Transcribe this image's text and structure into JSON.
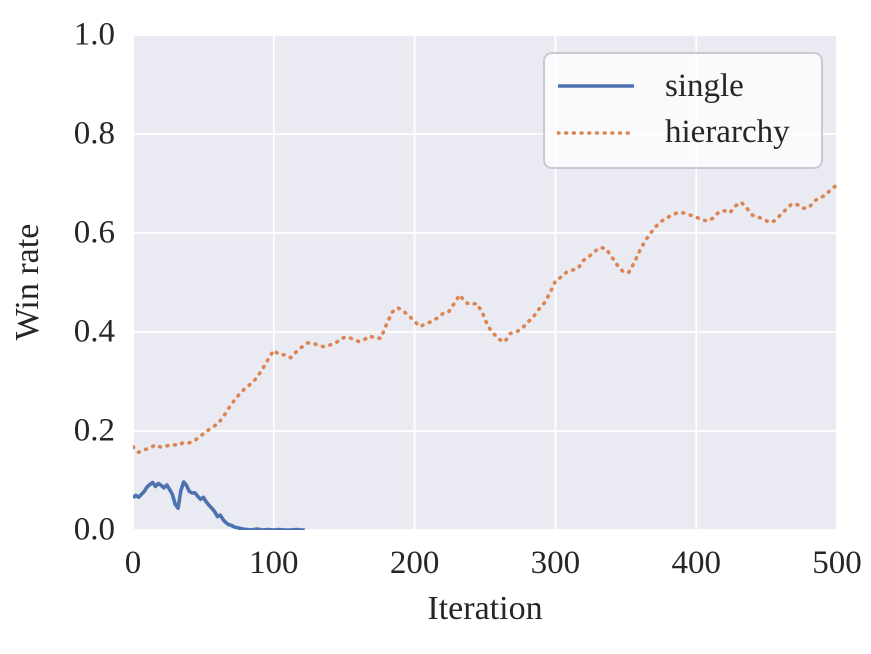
{
  "figure": {
    "background_color": "#ffffff",
    "plot_background_color": "#eaeaf2",
    "grid_color": "#ffffff",
    "text_color": "#262626"
  },
  "chart_data": {
    "type": "line",
    "title": "",
    "xlabel": "Iteration",
    "ylabel": "Win rate",
    "xlim": [
      0,
      500
    ],
    "ylim": [
      0.0,
      1.0
    ],
    "grid": true,
    "x_ticks": [
      0,
      100,
      200,
      300,
      400,
      500
    ],
    "x_tick_labels": [
      "0",
      "100",
      "200",
      "300",
      "400",
      "500"
    ],
    "y_ticks": [
      0.0,
      0.2,
      0.4,
      0.6,
      0.8,
      1.0
    ],
    "y_tick_labels": [
      "0.0",
      "0.2",
      "0.4",
      "0.6",
      "0.8",
      "1.0"
    ],
    "legend": {
      "position": "upper right",
      "entries": [
        {
          "label": "single",
          "color": "#4c72b0",
          "style": "solid"
        },
        {
          "label": "hierarchy",
          "color": "#dd8452",
          "style": "dotted"
        }
      ]
    },
    "series": [
      {
        "name": "single",
        "color": "#4c72b0",
        "style": "solid",
        "x": [
          0,
          2,
          4,
          6,
          8,
          10,
          12,
          14,
          16,
          18,
          20,
          22,
          24,
          26,
          28,
          30,
          32,
          34,
          36,
          38,
          40,
          42,
          44,
          46,
          48,
          50,
          52,
          54,
          56,
          58,
          60,
          62,
          64,
          66,
          68,
          70,
          72,
          75,
          78,
          81,
          84,
          88,
          92,
          96,
          100,
          104,
          108,
          112,
          116,
          120,
          122
        ],
        "y": [
          0.065,
          0.07,
          0.066,
          0.072,
          0.078,
          0.087,
          0.092,
          0.096,
          0.088,
          0.094,
          0.09,
          0.085,
          0.091,
          0.082,
          0.072,
          0.052,
          0.044,
          0.08,
          0.097,
          0.09,
          0.078,
          0.075,
          0.075,
          0.068,
          0.062,
          0.066,
          0.057,
          0.05,
          0.044,
          0.037,
          0.027,
          0.03,
          0.021,
          0.015,
          0.011,
          0.009,
          0.006,
          0.004,
          0.002,
          0.001,
          0.0,
          0.002,
          0.0,
          0.001,
          0.0,
          0.001,
          0.0,
          0.0,
          0.001,
          0.0,
          0.0
        ]
      },
      {
        "name": "hierarchy",
        "color": "#dd8452",
        "style": "dotted",
        "x": [
          0,
          4,
          8,
          12,
          16,
          20,
          24,
          28,
          32,
          36,
          40,
          44,
          48,
          52,
          56,
          60,
          64,
          68,
          72,
          76,
          80,
          84,
          88,
          92,
          96,
          100,
          104,
          108,
          112,
          116,
          120,
          124,
          128,
          132,
          136,
          140,
          144,
          148,
          152,
          156,
          160,
          164,
          168,
          172,
          176,
          180,
          184,
          188,
          192,
          196,
          200,
          204,
          208,
          212,
          216,
          220,
          224,
          228,
          232,
          236,
          240,
          244,
          248,
          252,
          256,
          260,
          264,
          268,
          272,
          276,
          280,
          284,
          288,
          292,
          296,
          300,
          304,
          308,
          312,
          316,
          320,
          324,
          328,
          332,
          336,
          340,
          344,
          348,
          352,
          356,
          360,
          364,
          368,
          372,
          376,
          380,
          384,
          388,
          392,
          396,
          400,
          404,
          408,
          412,
          416,
          420,
          424,
          428,
          432,
          436,
          440,
          444,
          448,
          452,
          456,
          460,
          464,
          468,
          472,
          476,
          480,
          484,
          488,
          492,
          496,
          500
        ],
        "y": [
          0.168,
          0.157,
          0.162,
          0.166,
          0.172,
          0.167,
          0.17,
          0.173,
          0.171,
          0.177,
          0.176,
          0.181,
          0.19,
          0.199,
          0.207,
          0.214,
          0.228,
          0.246,
          0.262,
          0.276,
          0.287,
          0.296,
          0.308,
          0.325,
          0.345,
          0.363,
          0.354,
          0.354,
          0.348,
          0.36,
          0.37,
          0.378,
          0.377,
          0.373,
          0.37,
          0.374,
          0.378,
          0.387,
          0.39,
          0.386,
          0.381,
          0.384,
          0.392,
          0.388,
          0.387,
          0.415,
          0.44,
          0.449,
          0.442,
          0.433,
          0.421,
          0.411,
          0.417,
          0.421,
          0.428,
          0.437,
          0.44,
          0.457,
          0.475,
          0.46,
          0.455,
          0.458,
          0.44,
          0.412,
          0.397,
          0.385,
          0.38,
          0.397,
          0.4,
          0.406,
          0.419,
          0.429,
          0.445,
          0.458,
          0.478,
          0.503,
          0.511,
          0.521,
          0.525,
          0.528,
          0.545,
          0.553,
          0.563,
          0.571,
          0.568,
          0.552,
          0.535,
          0.522,
          0.52,
          0.54,
          0.565,
          0.585,
          0.601,
          0.615,
          0.625,
          0.632,
          0.638,
          0.642,
          0.64,
          0.636,
          0.632,
          0.627,
          0.624,
          0.63,
          0.642,
          0.645,
          0.641,
          0.655,
          0.662,
          0.65,
          0.636,
          0.632,
          0.628,
          0.621,
          0.625,
          0.637,
          0.648,
          0.659,
          0.657,
          0.65,
          0.651,
          0.665,
          0.671,
          0.677,
          0.689,
          0.697
        ]
      }
    ]
  }
}
